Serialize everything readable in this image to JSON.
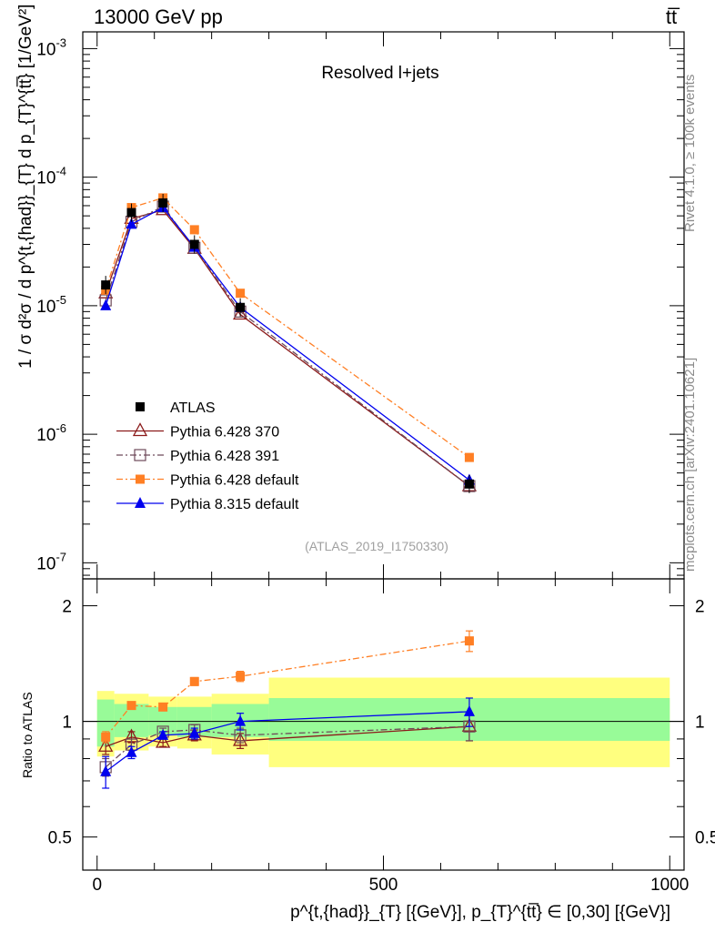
{
  "header": {
    "left": "13000 GeV pp",
    "right": "tt̅"
  },
  "annotation": {
    "title": "Resolved l+jets",
    "analysis_id": "(ATLAS_2019_I1750330)"
  },
  "side_labels": {
    "rivet": "Rivet 4.1.0, ≥ 100k events",
    "mcplots": "mcplots.cern.ch [arXiv:2401.10621]"
  },
  "axes": {
    "main_ylabel": "1 / σ d²σ / d p^{t,{had}}_{T} d p_{T}^{tt̅} [1/GeV²]",
    "ratio_ylabel": "Ratio to ATLAS",
    "xlabel": "p^{t,{had}}_{T} [{GeV}], p_{T}^{tt̅} ∈ [0,30] [{GeV}]"
  },
  "legend": [
    {
      "key": "atlas",
      "label": "ATLAS"
    },
    {
      "key": "p370",
      "label": "Pythia 6.428 370"
    },
    {
      "key": "p391",
      "label": "Pythia 6.428 391"
    },
    {
      "key": "pdef",
      "label": "Pythia 6.428 default"
    },
    {
      "key": "p8",
      "label": "Pythia 8.315 default"
    }
  ],
  "colors": {
    "atlas": "#000000",
    "p370": "#8b1a1a",
    "p391": "#6e4a5a",
    "pdef": "#ff7f24",
    "p8": "#0000ee",
    "band_inner": "#98fb98",
    "band_outer": "#ffff7f"
  },
  "chart_data": {
    "type": "scatter",
    "x_label": "p_T^{t,had} [GeV]",
    "xlim": [
      -25,
      1025
    ],
    "x_ticks": [
      0,
      500,
      1000
    ],
    "main": {
      "yscale": "log",
      "ylim": [
        7.5e-08,
        0.00135
      ],
      "y_ticks": [
        {
          "v": 1e-07,
          "label": "10^{-7}"
        },
        {
          "v": 1e-06,
          "label": "10^{-6}"
        },
        {
          "v": 1e-05,
          "label": "10^{-5}"
        },
        {
          "v": 0.0001,
          "label": "10^{-4}"
        },
        {
          "v": 0.001,
          "label": "10^{-3}"
        }
      ]
    },
    "ratio": {
      "yscale": "log",
      "ylim": [
        0.41,
        2.35
      ],
      "y_ticks": [
        0.5,
        1,
        2
      ],
      "bins": [
        {
          "xlo": 0,
          "xhi": 30,
          "inner": [
            0.86,
            1.14
          ],
          "outer": [
            0.81,
            1.2
          ]
        },
        {
          "xlo": 30,
          "xhi": 90,
          "inner": [
            0.91,
            1.11
          ],
          "outer": [
            0.84,
            1.18
          ]
        },
        {
          "xlo": 90,
          "xhi": 140,
          "inner": [
            0.92,
            1.09
          ],
          "outer": [
            0.86,
            1.16
          ]
        },
        {
          "xlo": 140,
          "xhi": 200,
          "inner": [
            0.91,
            1.09
          ],
          "outer": [
            0.85,
            1.16
          ]
        },
        {
          "xlo": 200,
          "xhi": 300,
          "inner": [
            0.91,
            1.11
          ],
          "outer": [
            0.82,
            1.18
          ]
        },
        {
          "xlo": 300,
          "xhi": 1000,
          "inner": [
            0.89,
            1.15
          ],
          "outer": [
            0.76,
            1.3
          ]
        }
      ]
    },
    "x": [
      15,
      60,
      115,
      170,
      250,
      650
    ],
    "series": [
      {
        "key": "atlas",
        "name": "ATLAS",
        "marker": "square-filled",
        "line": "none",
        "values": [
          1.45e-05,
          5.3e-05,
          6.3e-05,
          3e-05,
          9.7e-06,
          4.1e-07
        ]
      },
      {
        "key": "p370",
        "name": "Pythia 6.428 370",
        "marker": "triangle-open",
        "line": "solid",
        "values": [
          1.25e-05,
          4.75e-05,
          5.55e-05,
          2.78e-05,
          8.55e-06,
          3.95e-07
        ],
        "ratio": [
          0.86,
          0.91,
          0.88,
          0.92,
          0.89,
          0.97
        ],
        "ratio_err": [
          0.04,
          0.03,
          0.02,
          0.03,
          0.04,
          0.08
        ]
      },
      {
        "key": "p391",
        "name": "Pythia 6.428 391",
        "marker": "square-open",
        "line": "dashdot",
        "values": [
          1.1e-05,
          4.5e-05,
          5.9e-05,
          2.82e-05,
          9e-06,
          3.95e-07
        ],
        "ratio": [
          0.76,
          0.87,
          0.94,
          0.95,
          0.92,
          0.97
        ],
        "ratio_err": [
          0.04,
          0.03,
          0.02,
          0.03,
          0.04,
          0.08
        ]
      },
      {
        "key": "pdef",
        "name": "Pythia 6.428 default",
        "marker": "square-filled-small",
        "line": "dashdot",
        "values": [
          1.32e-05,
          5.8e-05,
          6.9e-05,
          3.9e-05,
          1.25e-05,
          6.6e-07
        ],
        "ratio": [
          0.91,
          1.1,
          1.09,
          1.27,
          1.31,
          1.62
        ],
        "ratio_err": [
          0.03,
          0.02,
          0.02,
          0.03,
          0.04,
          0.1
        ]
      },
      {
        "key": "p8",
        "name": "Pythia 8.315 default",
        "marker": "triangle-filled",
        "line": "solid",
        "values": [
          1e-05,
          4.3e-05,
          5.8e-05,
          2.85e-05,
          9.7e-06,
          4.4e-07
        ],
        "ratio": [
          0.74,
          0.83,
          0.92,
          0.93,
          1.0,
          1.06
        ],
        "ratio_err": [
          0.07,
          0.03,
          0.02,
          0.03,
          0.05,
          0.09
        ]
      }
    ]
  }
}
